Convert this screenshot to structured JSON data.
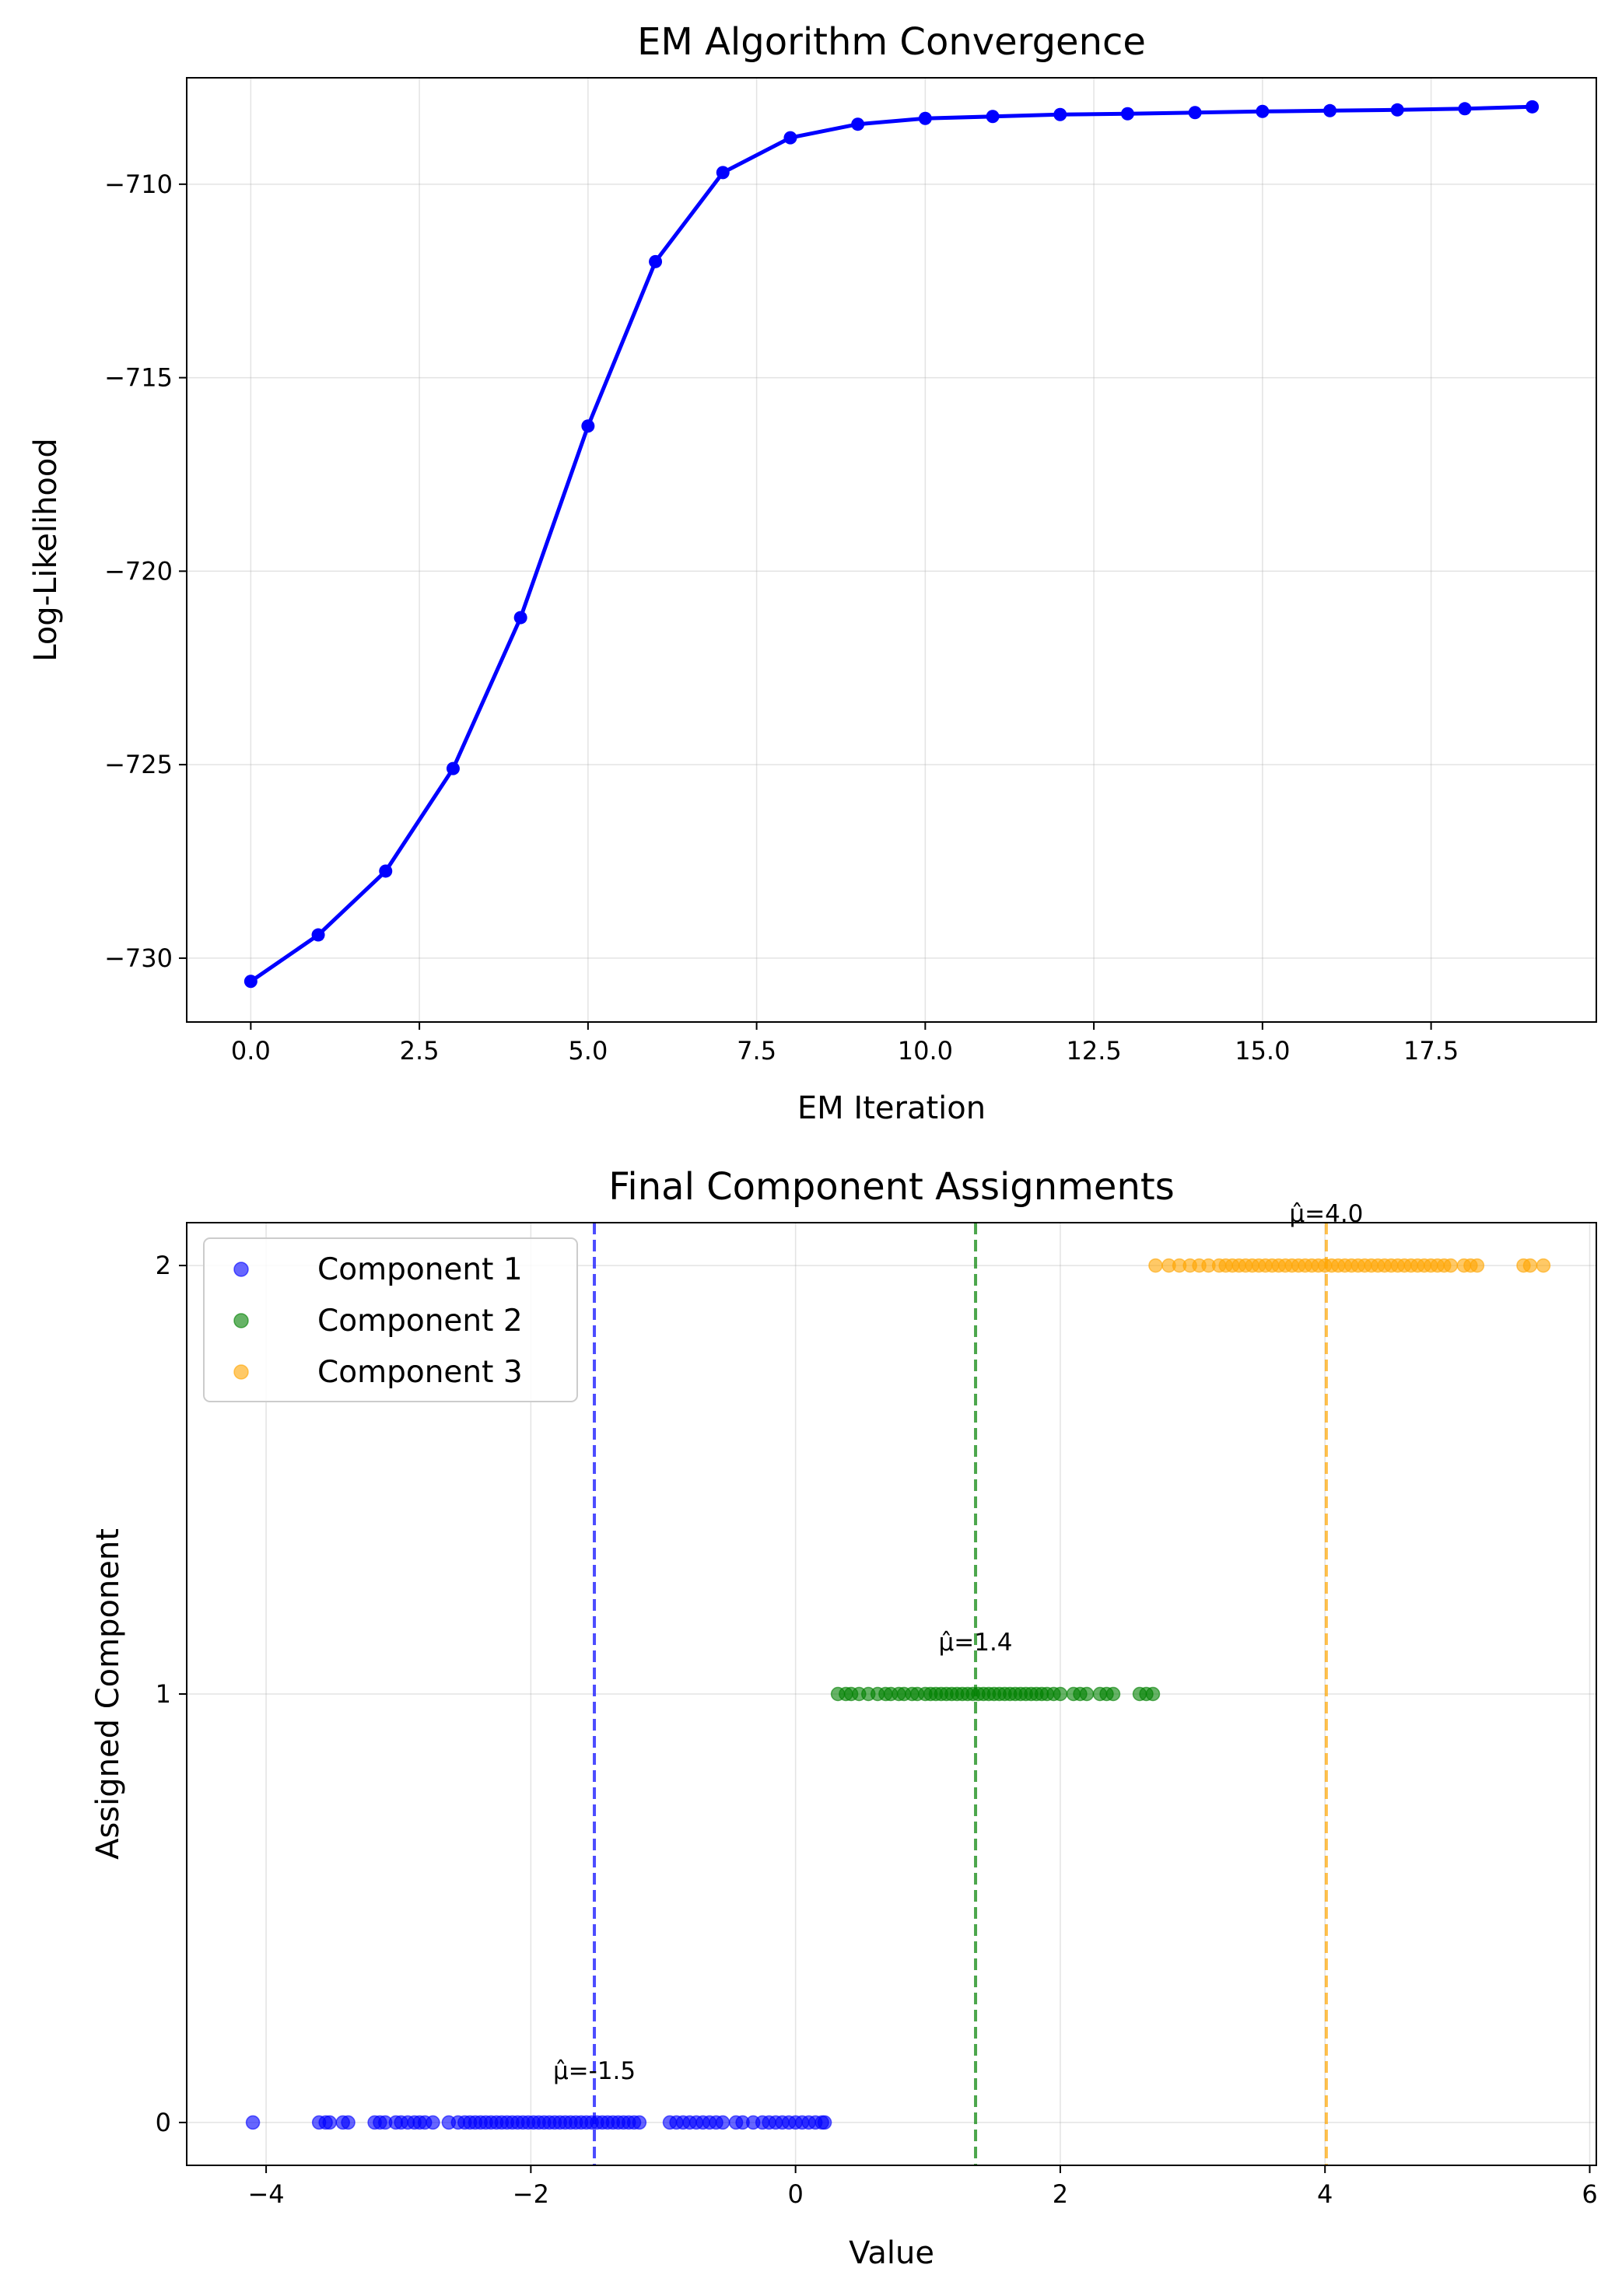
{
  "chart_data": [
    {
      "type": "line",
      "title": "EM Algorithm Convergence",
      "xlabel": "EM Iteration",
      "ylabel": "Log-Likelihood",
      "xlim": [
        -0.95,
        19.95
      ],
      "ylim": [
        -731.65,
        -707.25
      ],
      "xticks": [
        0,
        2.5,
        5,
        7.5,
        10,
        12.5,
        15,
        17.5
      ],
      "xtick_labels": [
        "0.0",
        "2.5",
        "5.0",
        "7.5",
        "10.0",
        "12.5",
        "15.0",
        "17.5"
      ],
      "yticks": [
        -710,
        -715,
        -720,
        -725,
        -730
      ],
      "ytick_labels": [
        "−710",
        "−715",
        "−720",
        "−725",
        "−730"
      ],
      "grid": true,
      "color": "#0000ff",
      "series": [
        {
          "x": [
            0,
            1,
            2,
            3,
            4,
            5,
            6,
            7,
            8,
            9,
            10,
            11,
            12,
            13,
            14,
            15,
            16,
            17,
            18,
            19
          ],
          "values": [
            -730.6,
            -729.4,
            -727.75,
            -725.1,
            -721.2,
            -716.25,
            -712.0,
            -709.7,
            -708.8,
            -708.45,
            -708.3,
            -708.25,
            -708.2,
            -708.18,
            -708.15,
            -708.12,
            -708.1,
            -708.08,
            -708.05,
            -708.0
          ]
        }
      ]
    },
    {
      "type": "scatter",
      "title": "Final Component Assignments",
      "xlabel": "Value",
      "ylabel": "Assigned Component",
      "xlim": [
        -4.6,
        6.05
      ],
      "ylim": [
        -0.1,
        2.1
      ],
      "xticks": [
        -4,
        -2,
        0,
        2,
        4,
        6
      ],
      "xtick_labels": [
        "−4",
        "−2",
        "0",
        "2",
        "4",
        "6"
      ],
      "yticks": [
        0,
        1,
        2
      ],
      "ytick_labels": [
        "0",
        "1",
        "2"
      ],
      "grid": true,
      "legend_position": "top-left",
      "series": [
        {
          "name": "Component 1",
          "color": "#0000ff",
          "y": 0,
          "mean": -1.5,
          "mean_x": -1.52,
          "mean_label": "μ̂=-1.5",
          "x": [
            -4.1,
            -3.6,
            -3.55,
            -3.52,
            -3.42,
            -3.38,
            -3.18,
            -3.14,
            -3.1,
            -3.02,
            -2.98,
            -2.93,
            -2.88,
            -2.84,
            -2.8,
            -2.74,
            -2.62,
            -2.55,
            -2.5,
            -2.46,
            -2.42,
            -2.38,
            -2.34,
            -2.3,
            -2.26,
            -2.22,
            -2.18,
            -2.14,
            -2.1,
            -2.06,
            -2.02,
            -1.98,
            -1.94,
            -1.9,
            -1.86,
            -1.82,
            -1.78,
            -1.74,
            -1.7,
            -1.66,
            -1.62,
            -1.58,
            -1.54,
            -1.5,
            -1.46,
            -1.42,
            -1.38,
            -1.34,
            -1.3,
            -1.26,
            -1.22,
            -1.18,
            -0.95,
            -0.9,
            -0.85,
            -0.8,
            -0.75,
            -0.7,
            -0.65,
            -0.6,
            -0.55,
            -0.45,
            -0.4,
            -0.32,
            -0.25,
            -0.2,
            -0.15,
            -0.1,
            -0.05,
            0.0,
            0.05,
            0.1,
            0.15,
            0.2,
            0.22
          ]
        },
        {
          "name": "Component 2",
          "color": "#008000",
          "y": 1,
          "mean": 1.4,
          "mean_x": 1.36,
          "mean_label": "μ̂=1.4",
          "x": [
            0.32,
            0.38,
            0.42,
            0.48,
            0.55,
            0.62,
            0.68,
            0.72,
            0.78,
            0.82,
            0.88,
            0.92,
            0.98,
            1.02,
            1.06,
            1.1,
            1.14,
            1.18,
            1.22,
            1.26,
            1.3,
            1.34,
            1.38,
            1.42,
            1.46,
            1.5,
            1.54,
            1.58,
            1.62,
            1.66,
            1.7,
            1.74,
            1.78,
            1.82,
            1.86,
            1.9,
            1.95,
            2.0,
            2.1,
            2.15,
            2.2,
            2.3,
            2.35,
            2.4,
            2.6,
            2.65,
            2.7
          ]
        },
        {
          "name": "Component 3",
          "color": "#ffa500",
          "y": 2,
          "mean": 4.0,
          "mean_x": 4.01,
          "mean_label": "μ̂=4.0",
          "x": [
            2.72,
            2.82,
            2.9,
            2.98,
            3.05,
            3.12,
            3.2,
            3.25,
            3.3,
            3.35,
            3.4,
            3.45,
            3.5,
            3.55,
            3.6,
            3.65,
            3.7,
            3.75,
            3.8,
            3.85,
            3.9,
            3.95,
            4.0,
            4.05,
            4.1,
            4.15,
            4.2,
            4.25,
            4.3,
            4.35,
            4.4,
            4.45,
            4.5,
            4.55,
            4.6,
            4.65,
            4.7,
            4.75,
            4.8,
            4.85,
            4.9,
            4.95,
            5.05,
            5.1,
            5.15,
            5.5,
            5.55,
            5.65
          ]
        }
      ]
    }
  ]
}
